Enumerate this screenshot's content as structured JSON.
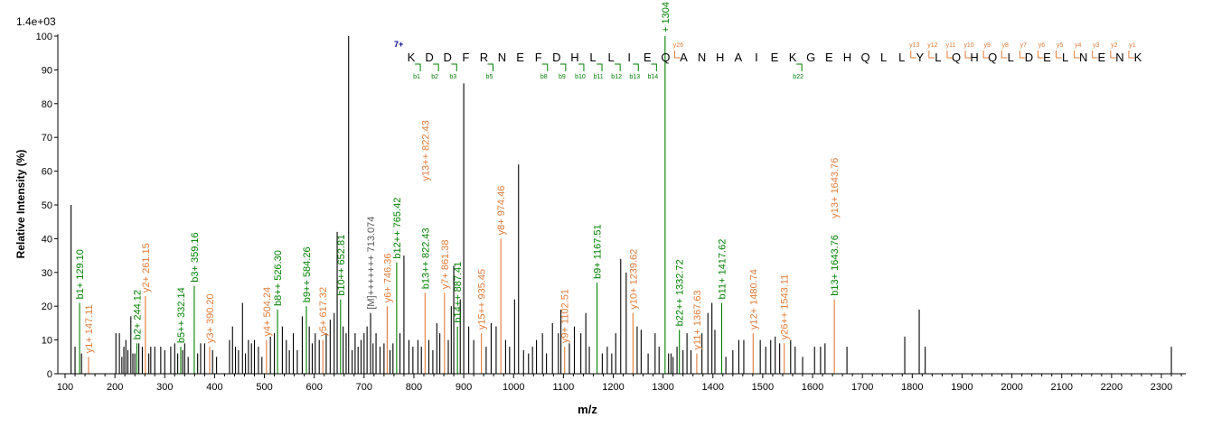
{
  "chart_data": {
    "type": "bar",
    "subtype": "ms-ms-spectrum",
    "scale_label": "1.4e+03",
    "xlabel": "m/z",
    "ylabel": "Relative   Intensity (%)",
    "xlim": [
      100,
      2350
    ],
    "ylim": [
      0,
      100
    ],
    "x_ticks": [
      100,
      200,
      300,
      400,
      500,
      600,
      700,
      800,
      900,
      1000,
      1100,
      1200,
      1300,
      1400,
      1500,
      1600,
      1700,
      1800,
      1900,
      2000,
      2100,
      2200,
      2300
    ],
    "y_ticks": [
      0,
      10,
      20,
      30,
      40,
      50,
      60,
      70,
      80,
      90,
      100
    ],
    "colors": {
      "b": "#008000",
      "y": "#e07b39",
      "other": "#000000",
      "charge": "#00008b",
      "precursor": "#555555"
    },
    "peaks": [
      [
        112,
        50
      ],
      [
        120,
        8
      ],
      [
        129.1,
        21
      ],
      [
        133,
        6
      ],
      [
        147.11,
        5
      ],
      [
        202,
        12
      ],
      [
        209,
        12
      ],
      [
        214,
        5
      ],
      [
        218,
        8
      ],
      [
        222,
        10
      ],
      [
        226,
        7
      ],
      [
        232,
        17
      ],
      [
        236,
        6
      ],
      [
        240,
        6
      ],
      [
        244.12,
        9
      ],
      [
        248,
        9
      ],
      [
        255,
        8
      ],
      [
        261.15,
        23
      ],
      [
        268,
        6
      ],
      [
        272,
        8
      ],
      [
        280,
        8
      ],
      [
        292,
        8
      ],
      [
        300,
        7
      ],
      [
        312,
        8
      ],
      [
        320,
        9
      ],
      [
        326,
        6
      ],
      [
        332.14,
        8
      ],
      [
        336,
        7
      ],
      [
        340,
        9
      ],
      [
        347,
        5
      ],
      [
        359.16,
        26
      ],
      [
        366,
        6
      ],
      [
        372,
        9
      ],
      [
        380,
        9
      ],
      [
        390.2,
        8
      ],
      [
        396,
        7
      ],
      [
        404,
        5
      ],
      [
        430,
        10
      ],
      [
        436,
        14
      ],
      [
        442,
        8
      ],
      [
        448,
        7
      ],
      [
        456,
        21
      ],
      [
        462,
        6
      ],
      [
        468,
        10
      ],
      [
        474,
        9
      ],
      [
        480,
        10
      ],
      [
        488,
        8
      ],
      [
        495,
        5
      ],
      [
        504.24,
        10
      ],
      [
        512,
        11
      ],
      [
        520,
        12
      ],
      [
        526.3,
        19
      ],
      [
        536,
        14
      ],
      [
        544,
        10
      ],
      [
        550,
        7
      ],
      [
        558,
        12
      ],
      [
        566,
        7
      ],
      [
        576,
        17
      ],
      [
        584.26,
        20
      ],
      [
        590,
        14
      ],
      [
        596,
        9
      ],
      [
        602,
        12
      ],
      [
        610,
        10
      ],
      [
        617.32,
        10
      ],
      [
        624,
        12
      ],
      [
        632,
        16
      ],
      [
        640,
        18
      ],
      [
        646,
        42
      ],
      [
        652.81,
        22
      ],
      [
        658,
        14
      ],
      [
        664,
        12
      ],
      [
        669,
        100
      ],
      [
        676,
        7
      ],
      [
        682,
        12
      ],
      [
        688,
        8
      ],
      [
        694,
        10
      ],
      [
        700,
        12
      ],
      [
        706,
        14
      ],
      [
        713.07,
        18
      ],
      [
        718,
        9
      ],
      [
        724,
        12
      ],
      [
        732,
        8
      ],
      [
        740,
        9
      ],
      [
        746.36,
        20
      ],
      [
        752,
        7
      ],
      [
        758,
        9
      ],
      [
        765.42,
        33
      ],
      [
        772,
        12
      ],
      [
        780,
        35
      ],
      [
        790,
        10
      ],
      [
        798,
        8
      ],
      [
        808,
        10
      ],
      [
        815,
        8
      ],
      [
        822.43,
        24
      ],
      [
        830,
        10
      ],
      [
        838,
        7
      ],
      [
        846,
        15
      ],
      [
        852,
        12
      ],
      [
        861.38,
        24
      ],
      [
        869,
        10
      ],
      [
        875,
        20
      ],
      [
        880,
        32
      ],
      [
        887.41,
        14
      ],
      [
        893,
        22
      ],
      [
        900,
        86
      ],
      [
        910,
        14
      ],
      [
        920,
        10
      ],
      [
        935.45,
        12
      ],
      [
        945,
        8
      ],
      [
        955,
        15
      ],
      [
        965,
        14
      ],
      [
        974.46,
        40
      ],
      [
        984,
        10
      ],
      [
        992,
        8
      ],
      [
        1002,
        22
      ],
      [
        1010,
        62
      ],
      [
        1020,
        7
      ],
      [
        1030,
        6
      ],
      [
        1038,
        8
      ],
      [
        1046,
        10
      ],
      [
        1058,
        12
      ],
      [
        1066,
        6
      ],
      [
        1078,
        15
      ],
      [
        1090,
        12
      ],
      [
        1095,
        19
      ],
      [
        1102.51,
        8
      ],
      [
        1112,
        9
      ],
      [
        1122,
        14
      ],
      [
        1135,
        12
      ],
      [
        1145,
        18
      ],
      [
        1152,
        8
      ],
      [
        1167.51,
        27
      ],
      [
        1178,
        6
      ],
      [
        1188,
        8
      ],
      [
        1197,
        6
      ],
      [
        1205,
        12
      ],
      [
        1215,
        34
      ],
      [
        1226,
        30
      ],
      [
        1239.62,
        18
      ],
      [
        1248,
        14
      ],
      [
        1256,
        13
      ],
      [
        1270,
        6
      ],
      [
        1284,
        12
      ],
      [
        1292,
        8
      ],
      [
        1304,
        100
      ],
      [
        1311,
        6
      ],
      [
        1316,
        6
      ],
      [
        1320,
        5
      ],
      [
        1328,
        8
      ],
      [
        1332.72,
        13
      ],
      [
        1340,
        7
      ],
      [
        1348,
        12
      ],
      [
        1356,
        7
      ],
      [
        1367.63,
        6
      ],
      [
        1378,
        12
      ],
      [
        1390,
        18
      ],
      [
        1398,
        21
      ],
      [
        1404,
        13
      ],
      [
        1417.62,
        21
      ],
      [
        1426,
        5
      ],
      [
        1440,
        7
      ],
      [
        1452,
        10
      ],
      [
        1462,
        10
      ],
      [
        1480.74,
        12
      ],
      [
        1495,
        10
      ],
      [
        1506,
        8
      ],
      [
        1516,
        10
      ],
      [
        1525,
        11
      ],
      [
        1534,
        9
      ],
      [
        1543.11,
        9
      ],
      [
        1556,
        10
      ],
      [
        1565,
        8
      ],
      [
        1580,
        5
      ],
      [
        1604,
        8
      ],
      [
        1616,
        8
      ],
      [
        1625,
        9
      ],
      [
        1643.76,
        22
      ],
      [
        1669,
        8
      ],
      [
        1785,
        11
      ],
      [
        1814,
        19
      ],
      [
        1826,
        8
      ],
      [
        2320,
        8
      ]
    ],
    "annotations": [
      {
        "mz": 129.1,
        "label": "b1+ 129.10",
        "kind": "b",
        "y": 21
      },
      {
        "mz": 147.11,
        "label": "y1+ 147.11",
        "kind": "y",
        "y": 5
      },
      {
        "mz": 244.12,
        "label": "b2+ 244.12",
        "kind": "b",
        "y": 9
      },
      {
        "mz": 261.15,
        "label": "y2+ 261.15",
        "kind": "y",
        "y": 23
      },
      {
        "mz": 332.14,
        "label": "b5++ 332.14",
        "kind": "b",
        "y": 8
      },
      {
        "mz": 359.16,
        "label": "b3+ 359.16",
        "kind": "b",
        "y": 26
      },
      {
        "mz": 390.2,
        "label": "y3+ 390.20",
        "kind": "y",
        "y": 8
      },
      {
        "mz": 504.24,
        "label": "y4+ 504.24",
        "kind": "y",
        "y": 10
      },
      {
        "mz": 526.3,
        "label": "b8++ 526.30",
        "kind": "b",
        "y": 19
      },
      {
        "mz": 584.26,
        "label": "b9++ 584.26",
        "kind": "b",
        "y": 20
      },
      {
        "mz": 617.32,
        "label": "y5+ 617.32",
        "kind": "y",
        "y": 10
      },
      {
        "mz": 652.81,
        "label": "b10++ 652.81",
        "kind": "b",
        "y": 22
      },
      {
        "mz": 713.074,
        "label": "[M]+++++++ 713.074",
        "kind": "precursor",
        "y": 18
      },
      {
        "mz": 746.36,
        "label": "y6+ 746.36",
        "kind": "y",
        "y": 20
      },
      {
        "mz": 765.42,
        "label": "b12++ 765.42",
        "kind": "b",
        "y": 33
      },
      {
        "mz": 822.43,
        "label": "b13++ 822.43",
        "kind": "b",
        "y": 24
      },
      {
        "mz": 822.43,
        "label": "y13++ 822.43",
        "kind": "y",
        "y": 56
      },
      {
        "mz": 861.38,
        "label": "y7+ 861.38",
        "kind": "y",
        "y": 24
      },
      {
        "mz": 887.41,
        "label": "b14++ 887.41",
        "kind": "b",
        "y": 14
      },
      {
        "mz": 935.45,
        "label": "y15++ 935.45",
        "kind": "y",
        "y": 12
      },
      {
        "mz": 974.46,
        "label": "y8+ 974.46",
        "kind": "y",
        "y": 40
      },
      {
        "mz": 1102.51,
        "label": "y9+ 1102.51",
        "kind": "y",
        "y": 8
      },
      {
        "mz": 1167.51,
        "label": "b9+ 1167.51",
        "kind": "b",
        "y": 27
      },
      {
        "mz": 1239.62,
        "label": "y10+ 1239.62",
        "kind": "y",
        "y": 18
      },
      {
        "mz": 1304,
        "label": "+ 1304",
        "kind": "b",
        "y": 100
      },
      {
        "mz": 1332.72,
        "label": "b22++ 1332.72",
        "kind": "b",
        "y": 13
      },
      {
        "mz": 1367.63,
        "label": "y11+ 1367.63",
        "kind": "y",
        "y": 6
      },
      {
        "mz": 1417.62,
        "label": "b11+ 1417.62",
        "kind": "b",
        "y": 21
      },
      {
        "mz": 1480.74,
        "label": "y12+ 1480.74",
        "kind": "y",
        "y": 12
      },
      {
        "mz": 1543.11,
        "label": "y26++ 1543.11",
        "kind": "y",
        "y": 9
      },
      {
        "mz": 1643.76,
        "label": "b13+ 1643.76",
        "kind": "b",
        "y": 22
      },
      {
        "mz": 1643.76,
        "label": "y13+ 1643.76",
        "kind": "y",
        "y": 45
      }
    ],
    "sequence": {
      "charge": "7+",
      "residues": [
        "K",
        "D",
        "D",
        "F",
        "R",
        "N",
        "E",
        "F",
        "D",
        "H",
        "L",
        "L",
        "I",
        "E",
        "Q",
        "A",
        "N",
        "H",
        "A",
        "I",
        "E",
        "K",
        "G",
        "E",
        "H",
        "Q",
        "L",
        "L",
        "Y",
        "L",
        "Q",
        "H",
        "Q",
        "L",
        "D",
        "E",
        "L",
        "N",
        "E",
        "N",
        "K"
      ],
      "b_ions": [
        {
          "after": 1,
          "label": "b1"
        },
        {
          "after": 2,
          "label": "b2"
        },
        {
          "after": 3,
          "label": "b3"
        },
        {
          "after": 5,
          "label": "b5"
        },
        {
          "after": 8,
          "label": "b8"
        },
        {
          "after": 9,
          "label": "b9"
        },
        {
          "after": 10,
          "label": "b10"
        },
        {
          "after": 11,
          "label": "b11"
        },
        {
          "after": 12,
          "label": "b12"
        },
        {
          "after": 13,
          "label": "b13"
        },
        {
          "after": 14,
          "label": "b14"
        },
        {
          "after": 22,
          "label": "b22"
        }
      ],
      "y_ions": [
        {
          "after": 15,
          "label": "y26"
        },
        {
          "after": 28,
          "label": "y13"
        },
        {
          "after": 29,
          "label": "y12"
        },
        {
          "after": 30,
          "label": "y11"
        },
        {
          "after": 31,
          "label": "y10"
        },
        {
          "after": 32,
          "label": "y9"
        },
        {
          "after": 33,
          "label": "y8"
        },
        {
          "after": 34,
          "label": "y7"
        },
        {
          "after": 35,
          "label": "y6"
        },
        {
          "after": 36,
          "label": "y5"
        },
        {
          "after": 37,
          "label": "y4"
        },
        {
          "after": 38,
          "label": "y3"
        },
        {
          "after": 39,
          "label": "y2"
        },
        {
          "after": 40,
          "label": "y1"
        }
      ]
    }
  }
}
